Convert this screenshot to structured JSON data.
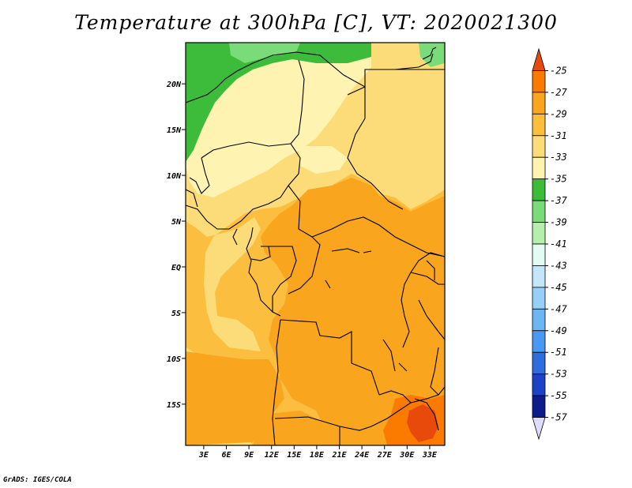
{
  "title": "Temperature at 300hPa [C], VT: 2020021300",
  "credit": "GrADS: IGES/COLA",
  "map": {
    "lat_labels": [
      "20N",
      "15N",
      "10N",
      "5N",
      "EQ",
      "5S",
      "10S",
      "15S"
    ],
    "lat_values": [
      20,
      15,
      10,
      5,
      0,
      -5,
      -10,
      -15
    ],
    "lon_labels": [
      "3E",
      "6E",
      "9E",
      "12E",
      "15E",
      "18E",
      "21E",
      "24E",
      "27E",
      "30E",
      "33E"
    ],
    "lon_values": [
      3,
      6,
      9,
      12,
      15,
      18,
      21,
      24,
      27,
      30,
      33
    ]
  },
  "colorbar": {
    "labels": [
      "-25",
      "-27",
      "-29",
      "-31",
      "-33",
      "-35",
      "-37",
      "-39",
      "-41",
      "-43",
      "-45",
      "-47",
      "-49",
      "-51",
      "-53",
      "-55",
      "-57"
    ],
    "colors": [
      "#e84a0c",
      "#fb7b00",
      "#f9a51e",
      "#fbbe3e",
      "#fcdc78",
      "#fff3b2",
      "#3cbc3a",
      "#79dc78",
      "#b4f0ac",
      "#e2fbf3",
      "#c3e6f9",
      "#97cff6",
      "#6eb5f4",
      "#4a99f0",
      "#2e6dde",
      "#1b43c8",
      "#0e1b8a",
      "#dddcfc"
    ]
  }
}
